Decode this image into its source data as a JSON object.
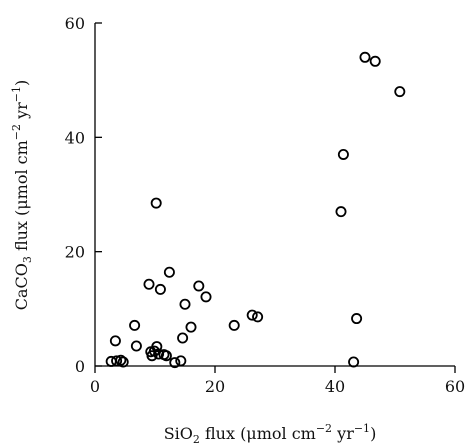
{
  "chart_data": {
    "type": "scatter",
    "xlabel": {
      "base": "SiO",
      "sub": "2",
      "unit_start": " flux (μmol cm",
      "unit_exp1": "−2",
      "unit_mid": " yr",
      "unit_exp2": "−1",
      "unit_end": ")"
    },
    "ylabel": {
      "base": "CaCO",
      "sub": "3",
      "unit_start": " flux (μmol cm",
      "unit_exp1": "−2",
      "unit_mid": " yr",
      "unit_exp2": "−1",
      "unit_end": ")"
    },
    "xlim": [
      0,
      60
    ],
    "ylim": [
      0,
      60
    ],
    "xticks": [
      "0",
      "20",
      "40",
      "60"
    ],
    "yticks": [
      "0",
      "20",
      "40",
      "60"
    ],
    "grid": false,
    "points": [
      {
        "x": 2.7,
        "y": 0.8
      },
      {
        "x": 3.6,
        "y": 0.9
      },
      {
        "x": 4.3,
        "y": 1.0
      },
      {
        "x": 4.7,
        "y": 0.7
      },
      {
        "x": 3.4,
        "y": 4.4
      },
      {
        "x": 6.6,
        "y": 7.1
      },
      {
        "x": 6.9,
        "y": 3.5
      },
      {
        "x": 9.0,
        "y": 14.3
      },
      {
        "x": 9.3,
        "y": 2.5
      },
      {
        "x": 9.5,
        "y": 1.8
      },
      {
        "x": 9.9,
        "y": 2.6
      },
      {
        "x": 10.3,
        "y": 3.4
      },
      {
        "x": 10.6,
        "y": 2.1
      },
      {
        "x": 10.9,
        "y": 13.4
      },
      {
        "x": 11.5,
        "y": 2.0
      },
      {
        "x": 11.9,
        "y": 1.8
      },
      {
        "x": 12.4,
        "y": 16.4
      },
      {
        "x": 13.3,
        "y": 0.6
      },
      {
        "x": 14.3,
        "y": 0.9
      },
      {
        "x": 14.6,
        "y": 4.9
      },
      {
        "x": 15.0,
        "y": 10.8
      },
      {
        "x": 16.0,
        "y": 6.8
      },
      {
        "x": 17.3,
        "y": 14.0
      },
      {
        "x": 18.5,
        "y": 12.1
      },
      {
        "x": 10.2,
        "y": 28.5
      },
      {
        "x": 23.2,
        "y": 7.1
      },
      {
        "x": 26.2,
        "y": 8.9
      },
      {
        "x": 27.1,
        "y": 8.6
      },
      {
        "x": 41.0,
        "y": 27.0
      },
      {
        "x": 41.4,
        "y": 37.0
      },
      {
        "x": 43.1,
        "y": 0.7
      },
      {
        "x": 43.6,
        "y": 8.3
      },
      {
        "x": 45.0,
        "y": 54.0
      },
      {
        "x": 46.7,
        "y": 53.3
      },
      {
        "x": 50.8,
        "y": 48.0
      }
    ]
  }
}
